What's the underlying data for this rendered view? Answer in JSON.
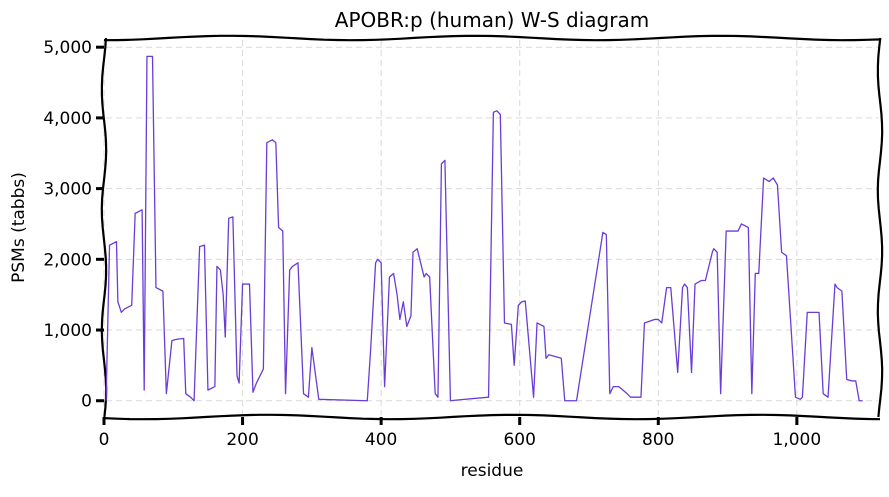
{
  "chart_data": {
    "type": "line",
    "title": "APOBR:p (human) W-S diagram",
    "xlabel": "residue",
    "ylabel": "PSMs (tabbs)",
    "xlim": [
      0,
      1120
    ],
    "ylim": [
      -230,
      5130
    ],
    "x_ticks": [
      0,
      200,
      400,
      600,
      800,
      1000
    ],
    "x_tick_labels": [
      "0",
      "200",
      "400",
      "600",
      "800",
      "1,000"
    ],
    "y_ticks": [
      0,
      1000,
      2000,
      3000,
      4000,
      5000
    ],
    "y_tick_labels": [
      "0",
      "1,000",
      "2,000",
      "3,000",
      "4,000",
      "5,000"
    ],
    "grid": true,
    "line_color": "#6a3dd6",
    "series": [
      {
        "x": [
          3,
          8,
          18,
          20,
          25,
          30,
          40,
          45,
          55,
          58,
          62,
          70,
          75,
          85,
          90,
          98,
          105,
          115,
          118,
          125,
          130,
          138,
          145,
          150,
          160,
          163,
          168,
          172,
          175,
          180,
          186,
          192,
          195,
          200,
          210,
          215,
          220,
          230,
          235,
          243,
          248,
          252,
          258,
          262,
          268,
          272,
          280,
          288,
          295,
          300,
          310,
          380,
          385,
          392,
          395,
          400,
          405,
          412,
          418,
          423,
          427,
          432,
          437,
          443,
          446,
          452,
          462,
          465,
          470,
          478,
          482,
          487,
          492,
          500,
          505,
          510,
          555,
          562,
          567,
          572,
          578,
          588,
          592,
          598,
          603,
          608,
          620,
          625,
          635,
          638,
          642,
          660,
          665,
          682,
          720,
          725,
          730,
          735,
          743,
          755,
          760,
          775,
          780,
          795,
          800,
          805,
          812,
          818,
          828,
          835,
          838,
          842,
          848,
          853,
          862,
          868,
          878,
          880,
          885,
          890,
          898,
          915,
          920,
          930,
          935,
          940,
          945,
          952,
          960,
          966,
          972,
          978,
          985,
          998,
          1005,
          1008,
          1015,
          1020,
          1032,
          1038,
          1045,
          1055,
          1058,
          1065,
          1072,
          1080,
          1085,
          1090,
          1095
        ],
        "y": [
          0,
          2200,
          2250,
          1400,
          1250,
          1300,
          1350,
          2650,
          2700,
          150,
          4870,
          4870,
          1600,
          1550,
          100,
          850,
          870,
          880,
          100,
          50,
          0,
          2180,
          2200,
          150,
          200,
          1900,
          1850,
          1500,
          900,
          2580,
          2600,
          350,
          250,
          1650,
          1650,
          120,
          250,
          450,
          3650,
          3690,
          3650,
          2450,
          2400,
          100,
          1850,
          1900,
          1950,
          100,
          50,
          750,
          20,
          0,
          750,
          1950,
          2000,
          1950,
          200,
          1750,
          1800,
          1500,
          1150,
          1400,
          1050,
          1200,
          2100,
          2150,
          1750,
          1800,
          1750,
          100,
          50,
          3350,
          3400,
          0,
          5,
          10,
          50,
          4080,
          4100,
          4050,
          1100,
          1080,
          500,
          1350,
          1400,
          1410,
          50,
          1100,
          1050,
          600,
          650,
          600,
          0,
          0,
          2380,
          2350,
          100,
          200,
          200,
          100,
          50,
          50,
          1100,
          1150,
          1150,
          1100,
          1600,
          1600,
          400,
          1600,
          1650,
          1600,
          400,
          1650,
          1700,
          1700,
          2100,
          2150,
          2100,
          100,
          2400,
          2400,
          2500,
          2450,
          100,
          1800,
          1800,
          3150,
          3100,
          3150,
          3050,
          2100,
          2050,
          50,
          20,
          50,
          1250,
          1250,
          1250,
          100,
          50,
          1650,
          1600,
          1550,
          300,
          280,
          280,
          0,
          0
        ]
      }
    ]
  }
}
